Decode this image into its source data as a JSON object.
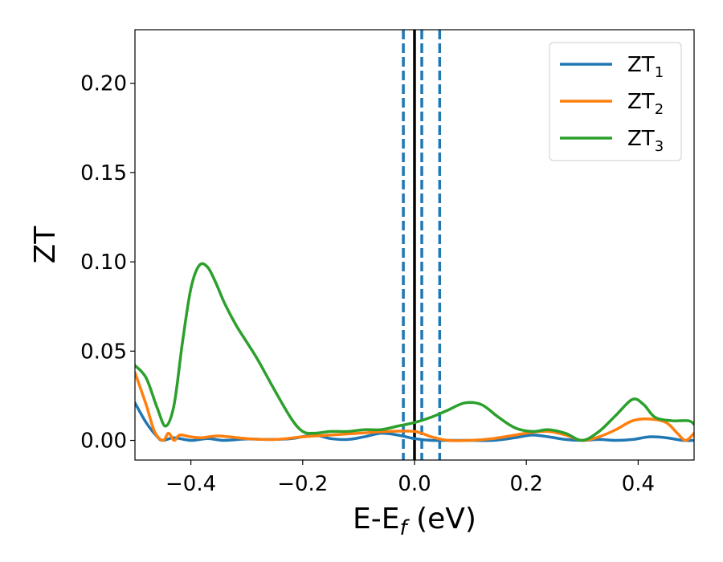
{
  "chart_data": {
    "type": "line",
    "xlabel": {
      "main": "E-E",
      "sub": "f",
      "tail": " (eV)"
    },
    "ylabel": "ZT",
    "xlim": [
      -0.5,
      0.5
    ],
    "ylim": [
      -0.011,
      0.23
    ],
    "xticks": [
      -0.4,
      -0.2,
      0.0,
      0.2,
      0.4
    ],
    "xtick_labels": [
      "−0.4",
      "−0.2",
      "0.0",
      "0.2",
      "0.4"
    ],
    "yticks": [
      0.0,
      0.05,
      0.1,
      0.15,
      0.2
    ],
    "ytick_labels": [
      "0.00",
      "0.05",
      "0.10",
      "0.15",
      "0.20"
    ],
    "grid": false,
    "legend_position": "top-right",
    "vertical_lines": [
      {
        "x": 0.0,
        "style": "solid",
        "color": "#000000"
      },
      {
        "x": -0.02,
        "style": "dashed",
        "color": "#1f77b4"
      },
      {
        "x": 0.013,
        "style": "dashed",
        "color": "#1f77b4"
      },
      {
        "x": 0.045,
        "style": "dashed",
        "color": "#1f77b4"
      }
    ],
    "series": [
      {
        "name": "ZT",
        "sub": "1",
        "color": "#1f77b4",
        "x": [
          -0.5,
          -0.48,
          -0.46,
          -0.45,
          -0.43,
          -0.4,
          -0.37,
          -0.34,
          -0.3,
          -0.26,
          -0.22,
          -0.18,
          -0.15,
          -0.12,
          -0.09,
          -0.06,
          -0.03,
          0.0,
          0.03,
          0.06,
          0.1,
          0.14,
          0.18,
          0.21,
          0.24,
          0.27,
          0.3,
          0.33,
          0.36,
          0.39,
          0.42,
          0.45,
          0.48,
          0.5
        ],
        "values": [
          0.021,
          0.01,
          0.002,
          0.0,
          0.0015,
          0.0,
          0.001,
          0.0,
          0.0008,
          0.0005,
          0.001,
          0.003,
          0.001,
          0.0005,
          0.002,
          0.004,
          0.003,
          0.001,
          0.0,
          0.0,
          0.0,
          0.0,
          0.0015,
          0.003,
          0.002,
          0.0005,
          0.0,
          0.0005,
          0.0,
          0.0005,
          0.002,
          0.0015,
          0.0,
          0.0
        ]
      },
      {
        "name": "ZT",
        "sub": "2",
        "color": "#ff7f0e",
        "x": [
          -0.5,
          -0.48,
          -0.465,
          -0.45,
          -0.44,
          -0.43,
          -0.42,
          -0.4,
          -0.38,
          -0.35,
          -0.3,
          -0.25,
          -0.2,
          -0.15,
          -0.1,
          -0.05,
          0.0,
          0.03,
          0.06,
          0.1,
          0.14,
          0.18,
          0.21,
          0.24,
          0.27,
          0.3,
          0.33,
          0.36,
          0.39,
          0.42,
          0.45,
          0.47,
          0.485,
          0.5
        ],
        "values": [
          0.038,
          0.02,
          0.005,
          0.0,
          0.004,
          0.0,
          0.003,
          0.002,
          0.0015,
          0.0025,
          0.001,
          0.0005,
          0.002,
          0.003,
          0.004,
          0.005,
          0.005,
          0.002,
          0.0,
          0.0,
          0.001,
          0.003,
          0.0045,
          0.005,
          0.003,
          0.0,
          0.002,
          0.006,
          0.011,
          0.012,
          0.01,
          0.004,
          0.0,
          0.004
        ]
      },
      {
        "name": "ZT",
        "sub": "3",
        "color": "#2ca02c",
        "x": [
          -0.5,
          -0.48,
          -0.46,
          -0.445,
          -0.43,
          -0.415,
          -0.4,
          -0.385,
          -0.37,
          -0.355,
          -0.34,
          -0.32,
          -0.3,
          -0.28,
          -0.25,
          -0.22,
          -0.2,
          -0.18,
          -0.15,
          -0.12,
          -0.09,
          -0.06,
          -0.03,
          0.0,
          0.03,
          0.06,
          0.09,
          0.12,
          0.15,
          0.18,
          0.21,
          0.24,
          0.27,
          0.3,
          0.33,
          0.36,
          0.39,
          0.41,
          0.43,
          0.46,
          0.49,
          0.5
        ],
        "values": [
          0.042,
          0.035,
          0.018,
          0.008,
          0.02,
          0.055,
          0.085,
          0.098,
          0.097,
          0.088,
          0.077,
          0.065,
          0.055,
          0.045,
          0.028,
          0.012,
          0.005,
          0.004,
          0.005,
          0.005,
          0.006,
          0.006,
          0.008,
          0.01,
          0.013,
          0.017,
          0.021,
          0.02,
          0.013,
          0.007,
          0.005,
          0.006,
          0.004,
          0.0,
          0.005,
          0.014,
          0.023,
          0.02,
          0.013,
          0.011,
          0.011,
          0.009
        ]
      }
    ]
  }
}
